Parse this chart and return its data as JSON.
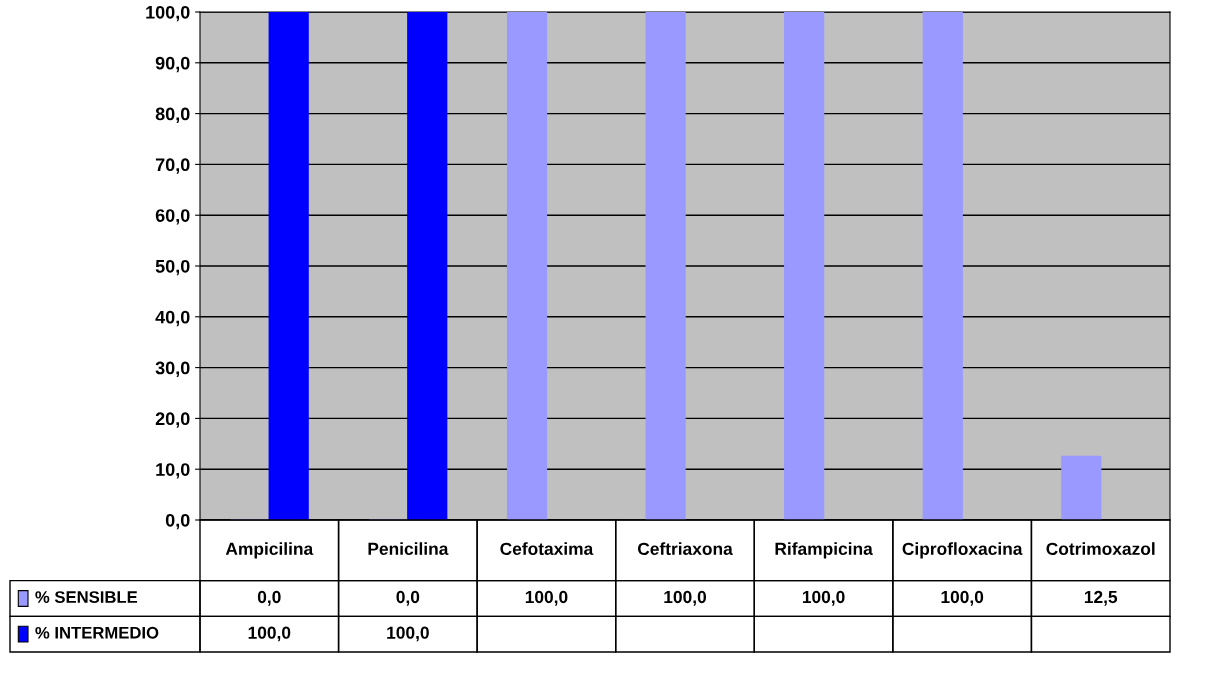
{
  "chart_data": {
    "type": "bar",
    "categories": [
      "Ampicilina",
      "Penicilina",
      "Cefotaxima",
      "Ceftriaxona",
      "Rifampicina",
      "Ciprofloxacina",
      "Cotrimoxazol"
    ],
    "series": [
      {
        "name": "% SENSIBLE",
        "color": "#9999ff",
        "values": [
          0.0,
          0.0,
          100.0,
          100.0,
          100.0,
          100.0,
          12.5
        ],
        "value_labels": [
          "0,0",
          "0,0",
          "100,0",
          "100,0",
          "100,0",
          "100,0",
          "12,5"
        ]
      },
      {
        "name": "% INTERMEDIO",
        "color": "#0000ff",
        "values": [
          100.0,
          100.0,
          null,
          null,
          null,
          null,
          null
        ],
        "value_labels": [
          "100,0",
          "100,0",
          null,
          null,
          null,
          null,
          null
        ]
      }
    ],
    "ylim": [
      0,
      100
    ],
    "yticks": [
      {
        "value": 0,
        "label": "0,0"
      },
      {
        "value": 10,
        "label": "10,0"
      },
      {
        "value": 20,
        "label": "20,0"
      },
      {
        "value": 30,
        "label": "30,0"
      },
      {
        "value": 40,
        "label": "40,0"
      },
      {
        "value": 50,
        "label": "50,0"
      },
      {
        "value": 60,
        "label": "60,0"
      },
      {
        "value": 70,
        "label": "70,0"
      },
      {
        "value": 80,
        "label": "80,0"
      },
      {
        "value": 90,
        "label": "90,0"
      },
      {
        "value": 100,
        "label": "100,0"
      }
    ],
    "grid": "y",
    "legend": "bottom left"
  }
}
